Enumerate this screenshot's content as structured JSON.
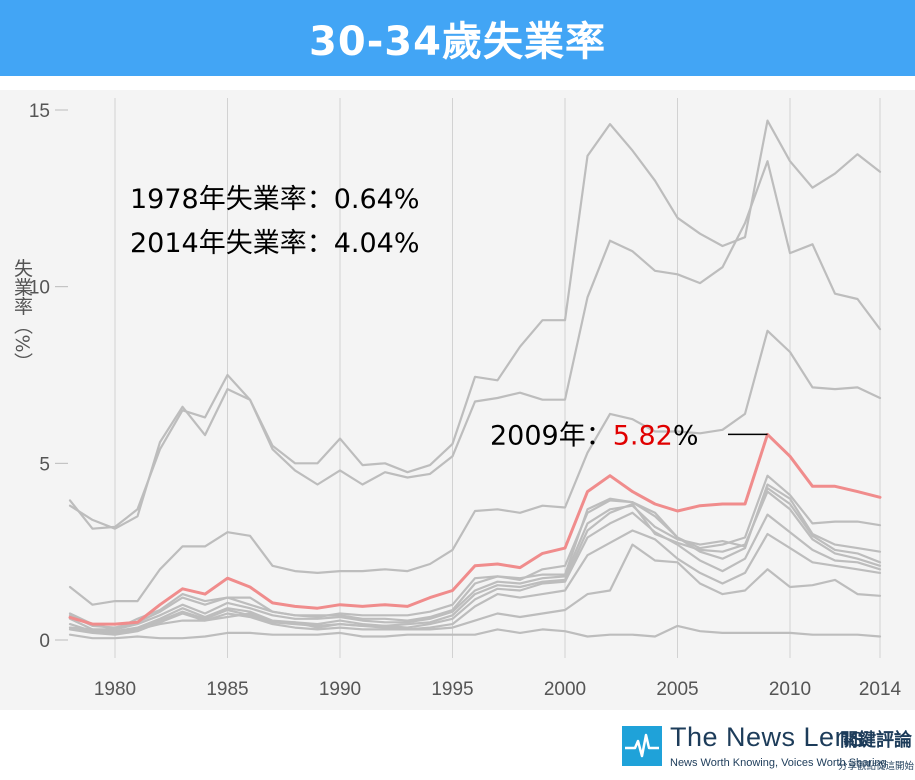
{
  "header": {
    "title": "30-34歲失業率"
  },
  "chart_data": {
    "type": "line",
    "title": "30-34歲失業率",
    "ylabel": "失業率（%）",
    "xlabel": "",
    "xlim": [
      1978,
      2014
    ],
    "ylim": [
      0,
      15
    ],
    "x_ticks": [
      "1980",
      "1985",
      "1990",
      "1995",
      "2000",
      "2005",
      "2010",
      "2014"
    ],
    "y_ticks": [
      "0",
      "5",
      "10",
      "15"
    ],
    "grid": "vertical",
    "annotations": {
      "line1": "1978年失業率：0.64%",
      "line2": "2014年失業率：4.04%",
      "peak_prefix": "2009年：",
      "peak_value": "5.82",
      "peak_suffix": "%"
    },
    "highlight_color": "#f08c8c",
    "background_color": "#bdbdbd",
    "peak_value_color": "#e00000",
    "x": [
      1978,
      1979,
      1980,
      1981,
      1982,
      1983,
      1984,
      1985,
      1986,
      1987,
      1988,
      1989,
      1990,
      1991,
      1992,
      1993,
      1994,
      1995,
      1996,
      1997,
      1998,
      1999,
      2000,
      2001,
      2002,
      2003,
      2004,
      2005,
      2006,
      2007,
      2008,
      2009,
      2010,
      2011,
      2012,
      2013,
      2014
    ],
    "series": [
      {
        "highlight": true,
        "values": [
          0.64,
          0.45,
          0.45,
          0.5,
          1.0,
          1.45,
          1.3,
          1.75,
          1.5,
          1.05,
          0.95,
          0.9,
          1.0,
          0.95,
          1.0,
          0.95,
          1.2,
          1.4,
          2.1,
          2.15,
          2.05,
          2.45,
          2.6,
          4.2,
          4.65,
          4.2,
          3.85,
          3.65,
          3.8,
          3.85,
          3.85,
          5.82,
          5.2,
          4.35,
          4.35,
          4.2,
          4.04
        ]
      },
      {
        "values": [
          3.95,
          3.15,
          3.2,
          3.7,
          5.4,
          6.5,
          6.3,
          7.5,
          6.8,
          5.5,
          5.0,
          5.0,
          5.7,
          4.95,
          5.0,
          4.75,
          4.95,
          5.55,
          7.45,
          7.35,
          8.3,
          9.05,
          9.05,
          13.7,
          14.6,
          13.85,
          13.0,
          11.95,
          11.5,
          11.15,
          11.4,
          14.7,
          13.55,
          12.8,
          13.2,
          13.75,
          13.25
        ]
      },
      {
        "values": [
          3.8,
          3.4,
          3.15,
          3.5,
          5.6,
          6.6,
          5.8,
          7.1,
          6.8,
          5.4,
          4.8,
          4.4,
          4.8,
          4.4,
          4.75,
          4.6,
          4.7,
          5.2,
          6.75,
          6.85,
          7.0,
          6.8,
          6.8,
          9.7,
          11.3,
          11.0,
          10.45,
          10.35,
          10.1,
          10.55,
          11.8,
          13.55,
          10.95,
          11.2,
          9.8,
          9.65,
          8.8
        ]
      },
      {
        "values": [
          1.5,
          1.0,
          1.1,
          1.1,
          2.0,
          2.65,
          2.65,
          3.05,
          2.95,
          2.1,
          1.95,
          1.9,
          1.95,
          1.95,
          2.0,
          1.95,
          2.15,
          2.55,
          3.65,
          3.7,
          3.6,
          3.8,
          3.75,
          5.3,
          6.4,
          6.25,
          5.9,
          5.9,
          5.85,
          5.95,
          6.4,
          8.75,
          8.15,
          7.15,
          7.1,
          7.15,
          6.85
        ]
      },
      {
        "values": [
          0.75,
          0.45,
          0.3,
          0.6,
          0.85,
          1.3,
          1.1,
          1.2,
          1.2,
          0.8,
          0.7,
          0.65,
          0.75,
          0.7,
          0.7,
          0.7,
          0.8,
          1.0,
          1.75,
          1.8,
          1.75,
          1.85,
          1.85,
          3.7,
          4.0,
          3.9,
          3.6,
          2.9,
          2.6,
          2.7,
          2.9,
          4.65,
          4.1,
          3.3,
          3.35,
          3.35,
          3.25
        ]
      },
      {
        "values": [
          0.7,
          0.4,
          0.35,
          0.5,
          0.8,
          1.2,
          1.0,
          1.2,
          1.0,
          0.8,
          0.7,
          0.7,
          0.7,
          0.6,
          0.6,
          0.55,
          0.65,
          0.85,
          1.6,
          1.8,
          1.7,
          2.0,
          2.1,
          3.6,
          3.95,
          3.9,
          3.5,
          2.9,
          2.5,
          2.3,
          2.6,
          4.4,
          4.0,
          3.0,
          2.7,
          2.6,
          2.5
        ]
      },
      {
        "values": [
          0.6,
          0.3,
          0.3,
          0.45,
          0.7,
          1.0,
          0.75,
          1.05,
          0.9,
          0.7,
          0.6,
          0.6,
          0.65,
          0.55,
          0.5,
          0.5,
          0.6,
          0.8,
          1.4,
          1.65,
          1.6,
          1.75,
          1.8,
          3.3,
          3.7,
          3.8,
          3.2,
          2.85,
          2.7,
          2.8,
          2.65,
          4.3,
          3.85,
          2.95,
          2.55,
          2.45,
          2.2
        ]
      },
      {
        "values": [
          0.45,
          0.25,
          0.25,
          0.35,
          0.6,
          0.9,
          0.65,
          0.9,
          0.8,
          0.55,
          0.5,
          0.45,
          0.55,
          0.45,
          0.4,
          0.45,
          0.5,
          0.7,
          1.3,
          1.55,
          1.5,
          1.65,
          1.7,
          3.1,
          3.6,
          3.85,
          3.0,
          2.75,
          2.55,
          2.5,
          2.7,
          4.2,
          3.7,
          2.85,
          2.45,
          2.3,
          2.1
        ]
      },
      {
        "values": [
          0.35,
          0.25,
          0.2,
          0.3,
          0.55,
          0.8,
          0.6,
          0.85,
          0.7,
          0.5,
          0.45,
          0.4,
          0.45,
          0.4,
          0.4,
          0.35,
          0.45,
          0.6,
          1.15,
          1.45,
          1.4,
          1.6,
          1.65,
          2.9,
          3.3,
          3.6,
          3.05,
          2.7,
          2.25,
          1.95,
          2.3,
          3.55,
          3.05,
          2.55,
          2.25,
          2.2,
          2.0
        ]
      },
      {
        "values": [
          0.3,
          0.2,
          0.15,
          0.25,
          0.5,
          0.75,
          0.55,
          0.75,
          0.65,
          0.45,
          0.35,
          0.3,
          0.35,
          0.3,
          0.3,
          0.3,
          0.35,
          0.45,
          0.95,
          1.3,
          1.2,
          1.3,
          1.4,
          2.4,
          2.75,
          3.1,
          2.85,
          2.3,
          1.9,
          1.6,
          1.9,
          3.0,
          2.6,
          2.2,
          2.1,
          2.0,
          1.9
        ]
      },
      {
        "values": [
          0.35,
          0.3,
          0.2,
          0.3,
          0.45,
          0.55,
          0.55,
          0.65,
          0.75,
          0.5,
          0.5,
          0.35,
          0.45,
          0.4,
          0.35,
          0.3,
          0.3,
          0.35,
          0.55,
          0.75,
          0.65,
          0.75,
          0.85,
          1.3,
          1.4,
          2.7,
          2.25,
          2.2,
          1.6,
          1.3,
          1.4,
          2.0,
          1.5,
          1.55,
          1.7,
          1.3,
          1.25
        ]
      },
      {
        "values": [
          0.15,
          0.05,
          0.05,
          0.1,
          0.05,
          0.05,
          0.1,
          0.2,
          0.2,
          0.15,
          0.15,
          0.15,
          0.2,
          0.1,
          0.1,
          0.15,
          0.15,
          0.15,
          0.15,
          0.3,
          0.2,
          0.3,
          0.25,
          0.1,
          0.15,
          0.15,
          0.1,
          0.4,
          0.25,
          0.2,
          0.2,
          0.2,
          0.2,
          0.15,
          0.15,
          0.15,
          0.1
        ]
      }
    ]
  },
  "footer": {
    "brand": "The News Lens",
    "brand_cn": "關鍵評論",
    "slogan": "News Worth Knowing, Voices Worth Sharing",
    "slogan_cn": "分享觀點從這開始"
  }
}
